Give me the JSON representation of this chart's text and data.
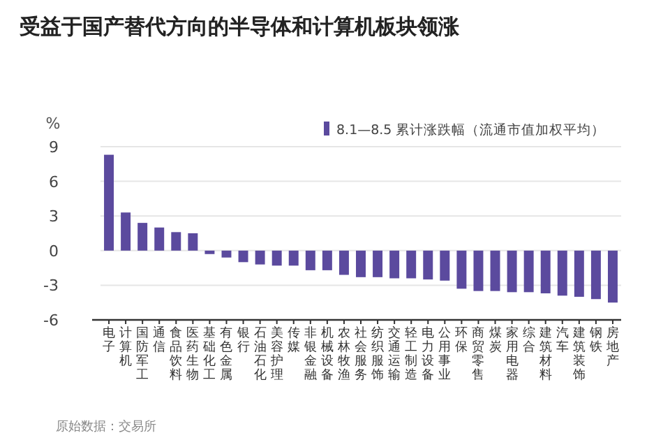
{
  "chart_data": {
    "type": "bar",
    "title": "受益于国产替代方向的半导体和计算机板块领涨",
    "ylabel": "%",
    "categories": [
      "电子",
      "计算机",
      "国防军工",
      "通信",
      "食品饮料",
      "医药生物",
      "基础化工",
      "有色金属",
      "银行",
      "石油石化",
      "美容护理",
      "传媒",
      "非银金融",
      "机械设备",
      "农林牧渔",
      "社会服务",
      "纺织服饰",
      "交通运输",
      "轻工制造",
      "电力设备",
      "公用事业",
      "环保",
      "商贸零售",
      "煤炭",
      "家用电器",
      "综合",
      "建筑材料",
      "汽车",
      "建筑装饰",
      "钢铁",
      "房地产"
    ],
    "series": [
      {
        "name": "8.1—8.5 累计涨跌幅（流通市值加权平均）",
        "color": "#5b4a9e",
        "values": [
          8.3,
          3.3,
          2.4,
          2.0,
          1.6,
          1.5,
          -0.3,
          -0.6,
          -1.0,
          -1.2,
          -1.3,
          -1.3,
          -1.7,
          -1.7,
          -2.1,
          -2.3,
          -2.3,
          -2.4,
          -2.4,
          -2.5,
          -2.6,
          -3.3,
          -3.5,
          -3.5,
          -3.6,
          -3.6,
          -3.7,
          -3.9,
          -4.0,
          -4.2,
          -4.5
        ]
      }
    ],
    "ylim": [
      -6,
      9
    ],
    "yticks": [
      9,
      6,
      3,
      0,
      -3,
      -6
    ],
    "grid": "y",
    "legend": "top right",
    "annotations": [
      "原始数据：交易所"
    ]
  }
}
